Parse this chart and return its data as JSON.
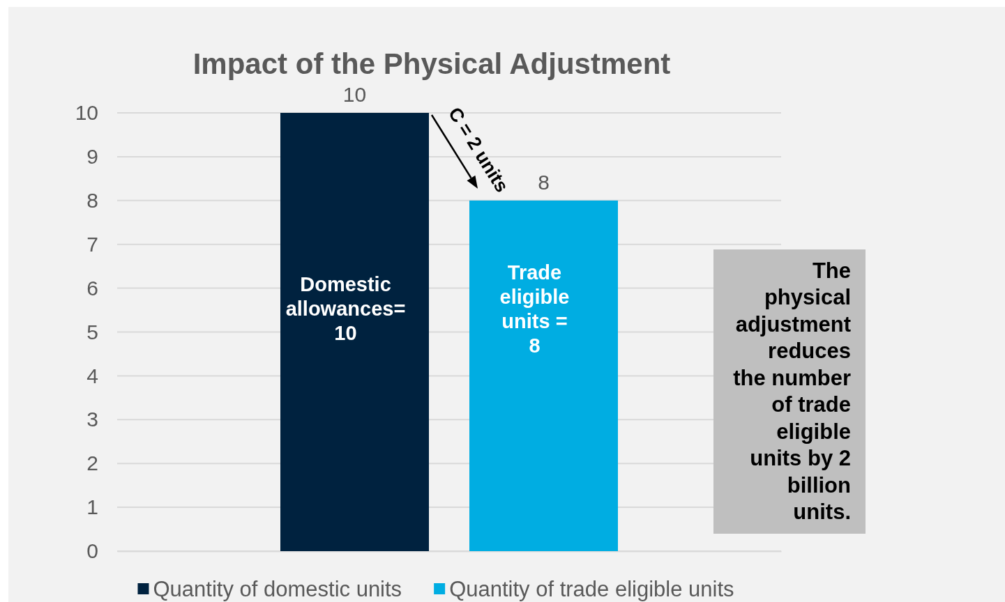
{
  "chart_data": {
    "type": "bar",
    "title": "Impact of the Physical Adjustment",
    "categories": [
      null
    ],
    "series": [
      {
        "name": "Quantity of domestic units",
        "color": "#00223f",
        "values": [
          10
        ]
      },
      {
        "name": "Quantity of trade eligible units",
        "color": "#00ade2",
        "values": [
          8
        ]
      }
    ],
    "ylim": [
      0,
      10
    ],
    "yticks": [
      0,
      1,
      2,
      3,
      4,
      5,
      6,
      7,
      8,
      9,
      10
    ],
    "grid": "y",
    "legend": "bottom",
    "data_labels": true,
    "annotations": [
      "Domestic allowances= 10",
      "Trade eligible units = 8",
      "C = 2 units",
      "The physical adjustment reduces the number of trade eligible units by 2 billion units."
    ]
  }
}
